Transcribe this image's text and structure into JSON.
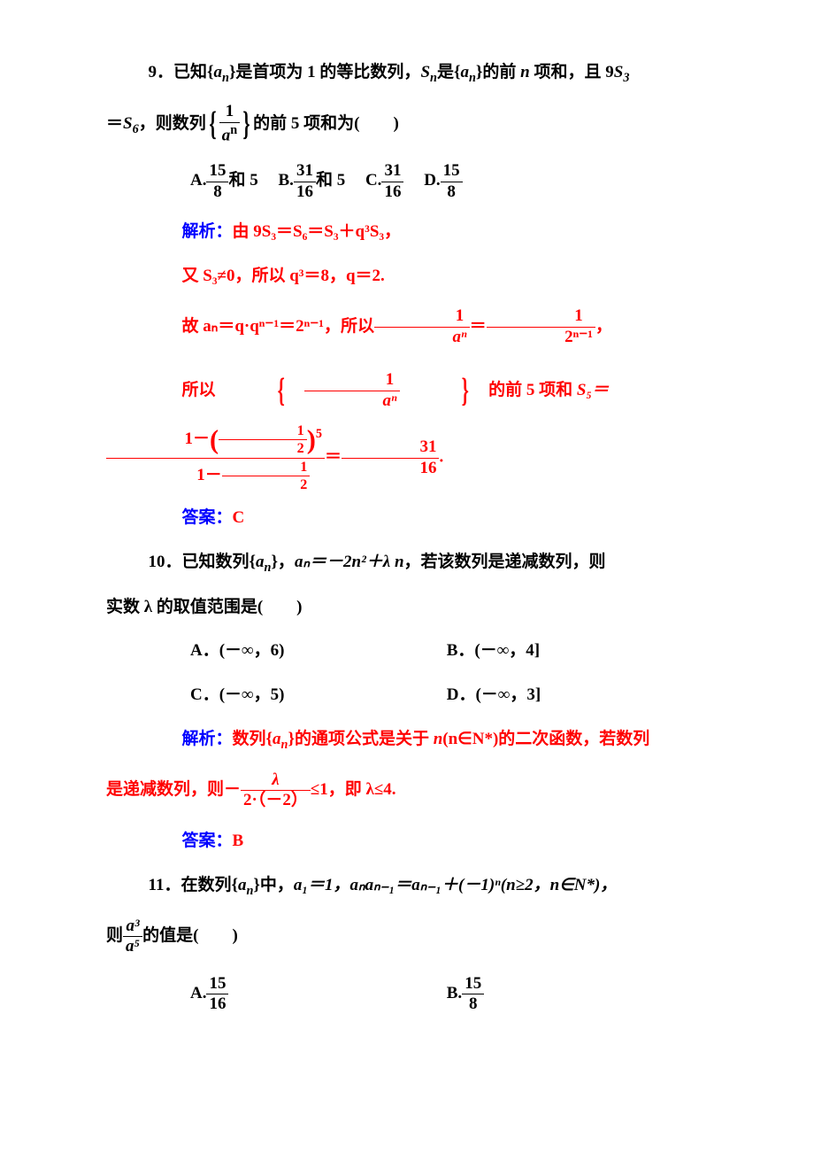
{
  "q9": {
    "stem_a": "9．已知{",
    "stem_an": "a",
    "stem_nsub": "n",
    "stem_b": "}是首项为 1 的等比数列，",
    "stem_Sn": "S",
    "stem_c": "是{",
    "stem_d": "}的前 ",
    "stem_n": "n",
    "stem_e": " 项和，且 9",
    "stem_S3": "S",
    "sub3": "3",
    "line2_eq": "＝",
    "line2_S6": "S",
    "sub6": "6",
    "line2_a": "，则数列",
    "brace_num": "1",
    "brace_den_a": "a",
    "brace_den_n": "n",
    "line2_b": "的前 5 项和为(　　)",
    "optA_lbl": "A.",
    "optA_frac_num": "15",
    "optA_frac_den": "8",
    "optA_tail": "和 5",
    "optB_lbl": "B.",
    "optB_frac_num": "31",
    "optB_frac_den": "16",
    "optB_tail": "和 5",
    "optC_lbl": "C.",
    "optC_frac_num": "31",
    "optC_frac_den": "16",
    "optD_lbl": "D.",
    "optD_frac_num": "15",
    "optD_frac_den": "8",
    "sol_lbl": "解析：",
    "sol1": "由 9S₃＝S₆＝S₃＋q³S₃，",
    "sol2": "又 S₃≠0，所以 q³＝8，q＝2.",
    "sol3_a": "故 ",
    "sol3_an": "aₙ＝q·qⁿ⁻¹＝2ⁿ⁻¹",
    "sol3_b": "，所以",
    "sol3_frac1_num": "1",
    "sol3_frac1_den": "aⁿ",
    "sol3_eq": "＝",
    "sol3_frac2_num": "1",
    "sol3_frac2_den": "2ⁿ⁻¹",
    "sol3_c": "，",
    "sol4_a": "所以",
    "sol4_mid": "的前 5 项和 ",
    "sol4_S5": "S₅＝",
    "sol4_big_num_a": "1－",
    "sol4_big_num_half_n": "1",
    "sol4_big_num_half_d": "2",
    "sol4_big_num_exp": "5",
    "sol4_big_den_a": "1－",
    "sol4_big_den_half_n": "1",
    "sol4_big_den_half_d": "2",
    "sol4_eq2": "＝",
    "sol4_res_num": "31",
    "sol4_res_den": "16",
    "sol4_dot": ".",
    "ans_lbl": "答案：",
    "ans": "C"
  },
  "q10": {
    "stem_a": "10．已知数列{",
    "stem_an": "a",
    "stem_nsub": "n",
    "stem_b": "}，",
    "stem_c": "aₙ＝－2n²＋",
    "stem_lam": "λ",
    "stem_n": "n",
    "stem_d": "，若该数列是递减数列，则",
    "line2": "实数 λ 的取值范围是(　　)",
    "optA": "A．(－∞，6)",
    "optB": "B．(－∞，4]",
    "optC": "C．(－∞，5)",
    "optD": "D．(－∞，3]",
    "sol_lbl": "解析：",
    "sol1_a": "数列{",
    "sol1_b": "}的通项公式是关于 ",
    "sol1_n": "n",
    "sol1_c": "(n∈N*)的二次函数，若数列",
    "sol2_a": "是递减数列，则－",
    "sol2_frac_num": "λ",
    "sol2_frac_den": "2·（－2）",
    "sol2_b": "≤1，即 λ≤4.",
    "ans_lbl": "答案：",
    "ans": "B"
  },
  "q11": {
    "stem_a": "11．在数列{",
    "stem_an": "a",
    "stem_nsub": "n",
    "stem_b": "}中，",
    "stem_c": "a₁＝1，aₙaₙ₋₁＝aₙ₋₁＋(－1)ⁿ(n≥2，n∈N*)，",
    "line2_a": "则",
    "frac_num": "a³",
    "frac_den": "a⁵",
    "line2_b": "的值是(　　)",
    "optA_lbl": "A.",
    "optA_num": "15",
    "optA_den": "16",
    "optB_lbl": "B.",
    "optB_num": "15",
    "optB_den": "8"
  },
  "colors": {
    "text": "#000000",
    "blue": "#0000ff",
    "red": "#ff0000",
    "bg": "#ffffff"
  }
}
